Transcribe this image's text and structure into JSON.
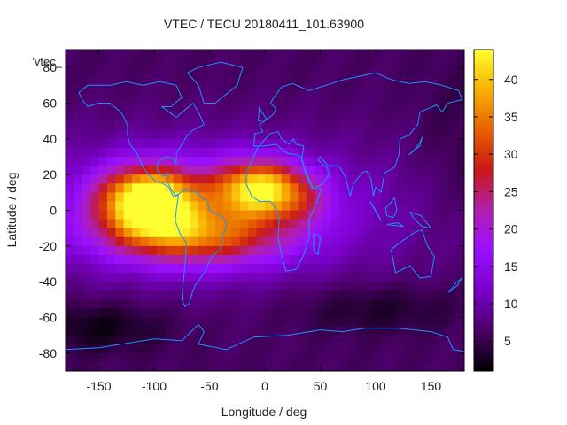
{
  "chart_data": {
    "type": "heatmap",
    "title": "VTEC / TECU 20180411_101.63900",
    "xlabel": "Longitude / deg",
    "ylabel": "Latitude / deg",
    "legend_label": "'vtec_",
    "xlim": [
      -180,
      180
    ],
    "ylim": [
      -90,
      90
    ],
    "x_ticks": [
      -150,
      -100,
      -50,
      0,
      50,
      100,
      150
    ],
    "y_ticks": [
      -80,
      -60,
      -40,
      -20,
      0,
      20,
      40,
      60,
      80
    ],
    "colorbar": {
      "range": [
        1,
        44
      ],
      "ticks": [
        5,
        10,
        15,
        20,
        25,
        30,
        35,
        40
      ],
      "colormap": [
        "#000000",
        "#4a0066",
        "#7a00c8",
        "#9a10ff",
        "#b020b0",
        "#c81818",
        "#e86000",
        "#f8b000",
        "#ffff30"
      ]
    },
    "features": {
      "equatorial_peak_main": {
        "lon": -105,
        "lat": 5,
        "value": 42
      },
      "equatorial_peak_secondary": {
        "lon": -5,
        "lat": 12,
        "value": 38
      },
      "southern_crest": {
        "lon": -60,
        "lat": -15,
        "value": 30
      },
      "background_night": {
        "value": 6
      },
      "polar_minimum_south": {
        "lon": -150,
        "lat": -65,
        "value": 2
      }
    },
    "grid": false,
    "overlay": "coastlines"
  }
}
